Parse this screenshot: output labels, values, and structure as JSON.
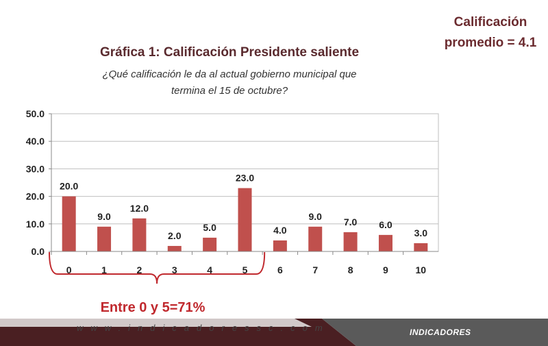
{
  "header": {
    "average_line1": "Calificación",
    "average_line2": "promedio = 4.1"
  },
  "chart_data": {
    "type": "bar",
    "title": "Gráfica 1: Calificación Presidente saliente",
    "subtitle_line1": "¿Qué calificación le da al actual gobierno municipal que",
    "subtitle_line2": "termina el 15 de octubre?",
    "categories": [
      "0",
      "1",
      "2",
      "3",
      "4",
      "5",
      "6",
      "7",
      "8",
      "9",
      "10"
    ],
    "values": [
      20.0,
      9.0,
      12.0,
      2.0,
      5.0,
      23.0,
      4.0,
      9.0,
      7.0,
      6.0,
      3.0
    ],
    "data_labels": [
      "20.0",
      "9.0",
      "12.0",
      "2.0",
      "5.0",
      "23.0",
      "4.0",
      "9.0",
      "7.0",
      "6.0",
      "3.0"
    ],
    "y_ticks": [
      "0.0",
      "10.0",
      "20.0",
      "30.0",
      "40.0",
      "50.0"
    ],
    "ylim": [
      0,
      50
    ],
    "grid": true,
    "bar_color": "#c0504d",
    "annotation": "Entre 0 y 5=71%",
    "annotation_color": "#c0292e"
  },
  "footer": {
    "url": "www.indicadoressc.com",
    "logo": "INDICADORES"
  }
}
